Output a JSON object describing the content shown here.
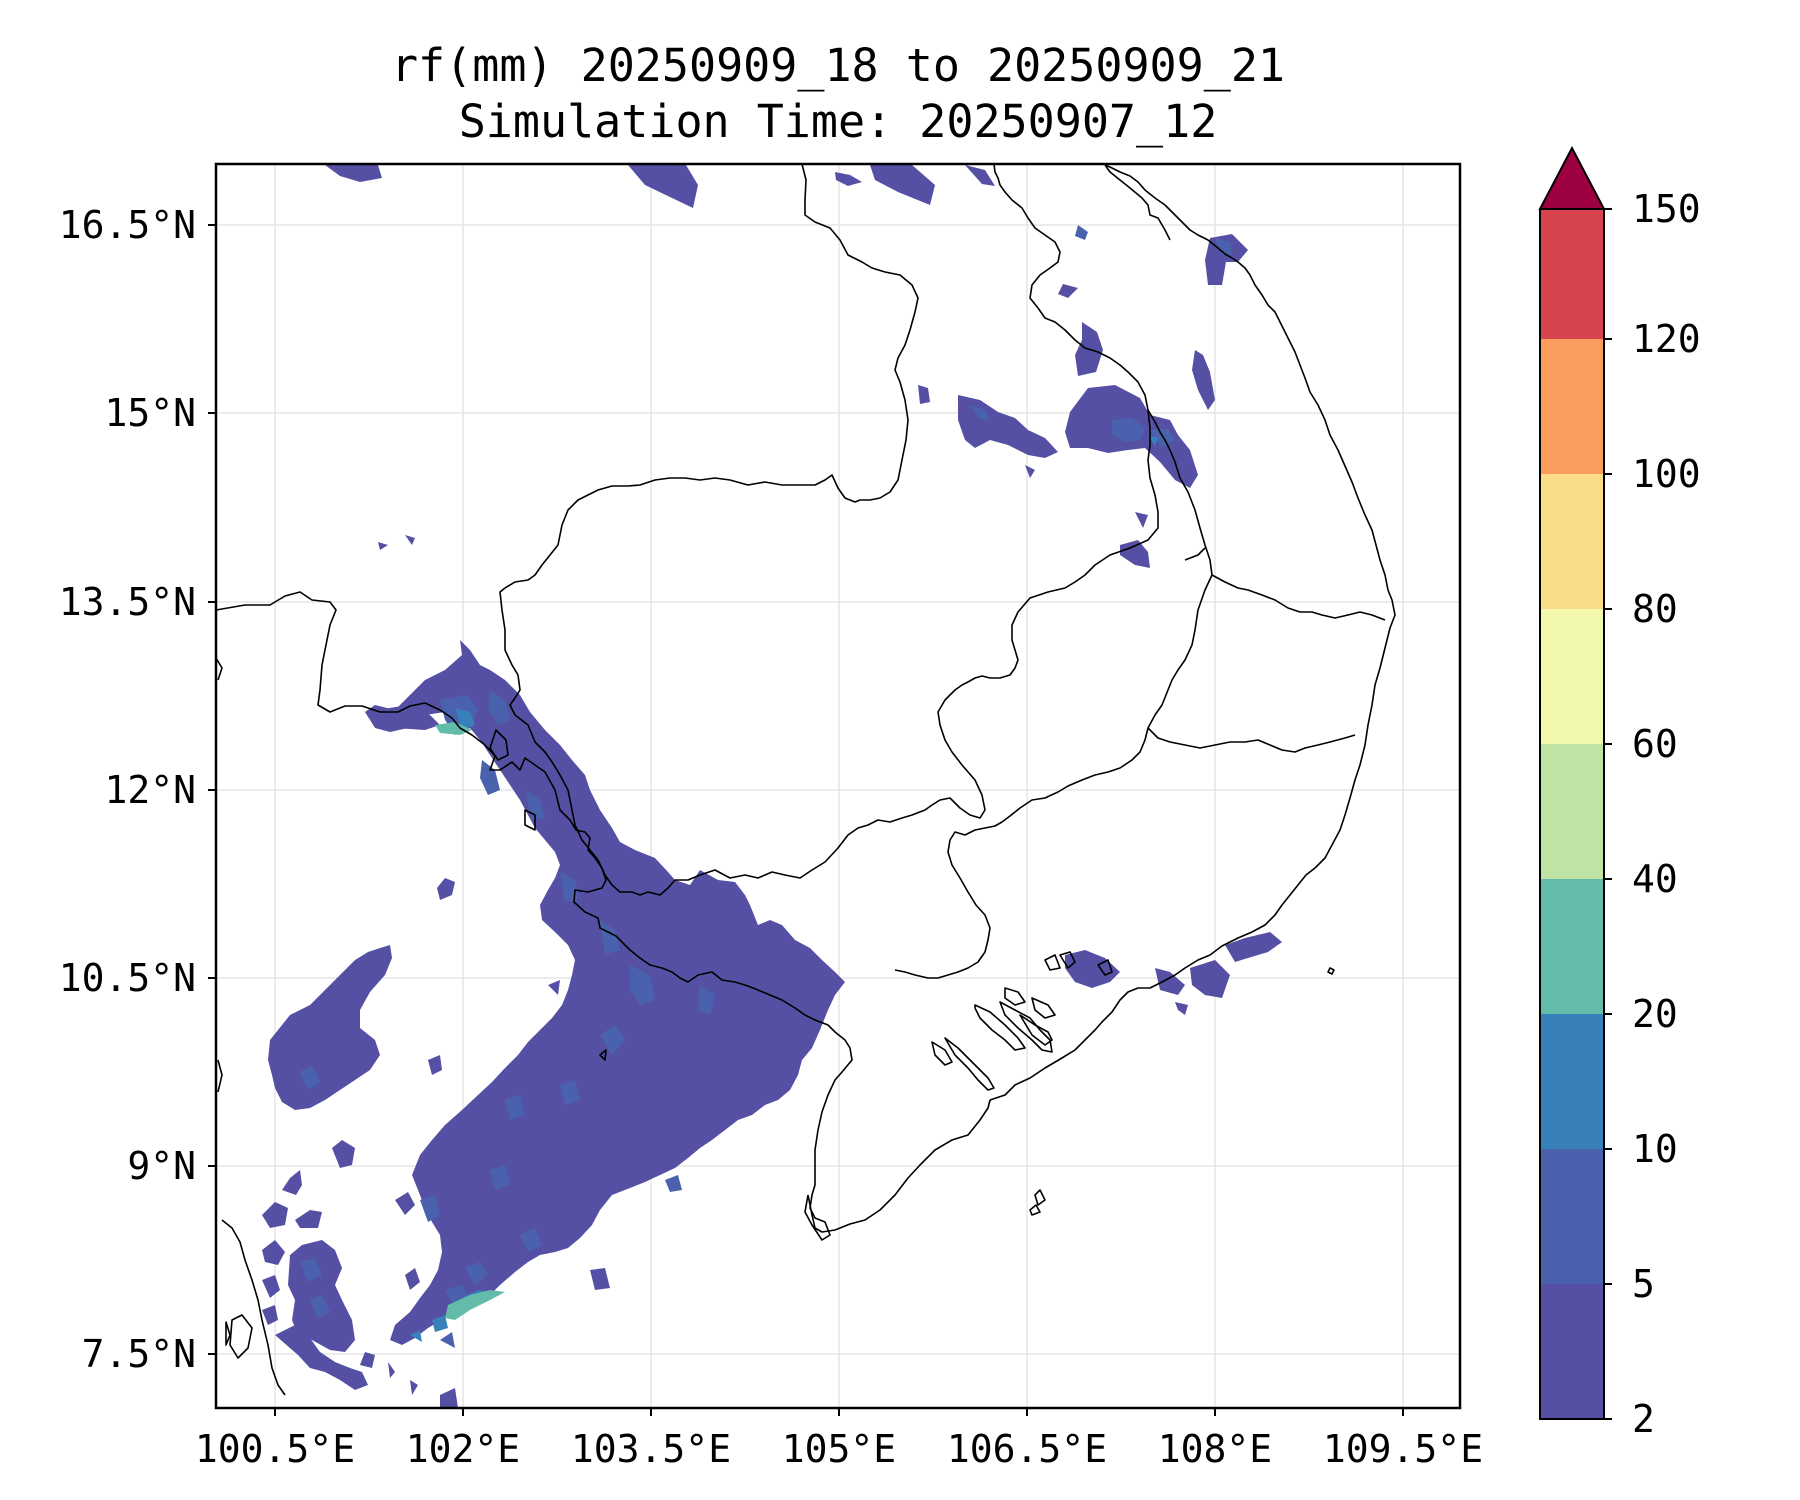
{
  "title": {
    "line1": "rf(mm) 20250909_18 to 20250909_21",
    "line2": "Simulation Time: 20250907_12"
  },
  "map": {
    "lat_ticks": [
      "16.5°N",
      "15°N",
      "13.5°N",
      "12°N",
      "10.5°N",
      "9°N",
      "7.5°N"
    ],
    "lon_ticks": [
      "100.5°E",
      "102°E",
      "103.5°E",
      "105°E",
      "106.5°E",
      "108°E",
      "109.5°E"
    ]
  },
  "colorbar": {
    "labels": [
      "2",
      "5",
      "10",
      "20",
      "40",
      "60",
      "80",
      "100",
      "120",
      "150"
    ],
    "colors": [
      "#5550a3",
      "#4a62ad",
      "#3880ba",
      "#63bca9",
      "#bfe3a2",
      "#f2f9ad",
      "#fbdc8a",
      "#f99c5d",
      "#d7434e"
    ],
    "extend_color": "#9e0142"
  }
}
